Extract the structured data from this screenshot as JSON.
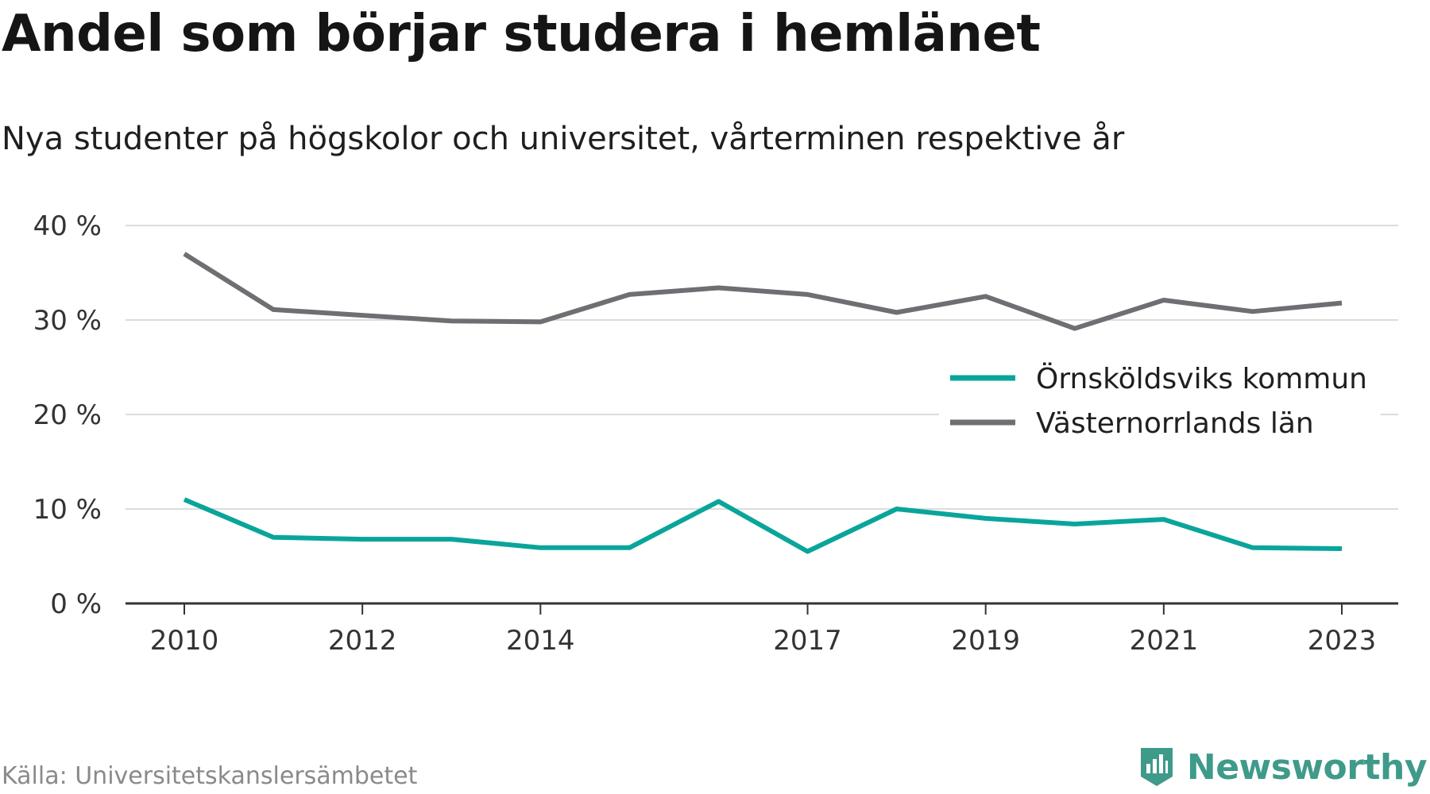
{
  "title": "Andel som börjar studera i hemlänet",
  "subtitle": "Nya studenter på högskolor och universitet, vårterminen respektive år",
  "source": "Källa: Universitetskanslersämbetet",
  "brand": {
    "name": "Newsworthy",
    "logo_icon": "newsworthy-logo-icon",
    "color": "#3f9a8a"
  },
  "chart_data": {
    "type": "line",
    "x": [
      2010,
      2011,
      2012,
      2013,
      2014,
      2015,
      2016,
      2017,
      2018,
      2019,
      2020,
      2021,
      2022,
      2023
    ],
    "x_tick_values": [
      2010,
      2012,
      2014,
      2017,
      2019,
      2021,
      2023
    ],
    "x_tick_labels": [
      "2010",
      "2012",
      "2014",
      "2017",
      "2019",
      "2021",
      "2023"
    ],
    "y_tick_values": [
      0,
      10,
      20,
      30,
      40
    ],
    "y_tick_labels": [
      "0 %",
      "10 %",
      "20 %",
      "30 %",
      "40 %"
    ],
    "ylim": [
      0,
      40
    ],
    "grid": true,
    "legend_position": "right",
    "series": [
      {
        "name": "Örnsköldsviks kommun",
        "color": "#0aa59a",
        "values": [
          11.0,
          7.0,
          6.8,
          6.8,
          5.9,
          5.9,
          10.8,
          5.5,
          10.0,
          9.0,
          8.4,
          8.9,
          5.9,
          5.8
        ]
      },
      {
        "name": "Västernorrlands län",
        "color": "#6e6e73",
        "values": [
          37.0,
          31.1,
          30.5,
          29.9,
          29.8,
          32.7,
          33.4,
          32.7,
          30.8,
          32.5,
          29.1,
          32.1,
          30.9,
          31.8
        ]
      }
    ]
  }
}
